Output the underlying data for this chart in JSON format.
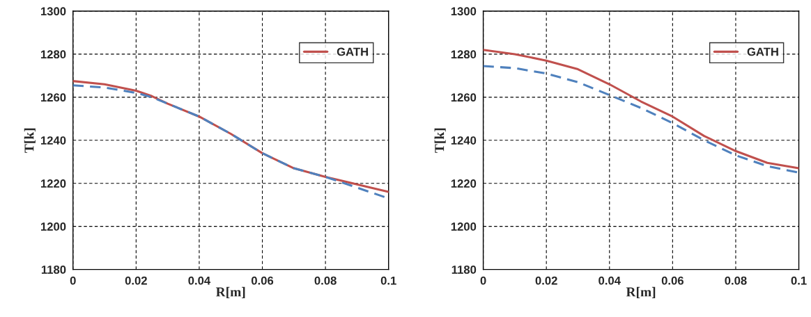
{
  "chart_data": [
    {
      "type": "line",
      "xlabel": "R[m]",
      "ylabel": "T[k]",
      "x": [
        0,
        0.01,
        0.02,
        0.025,
        0.03,
        0.04,
        0.05,
        0.06,
        0.07,
        0.08,
        0.09,
        0.1
      ],
      "xlim": [
        0,
        0.1
      ],
      "xticks": [
        0,
        0.02,
        0.04,
        0.06,
        0.08,
        0.1
      ],
      "ylim": [
        1180,
        1300
      ],
      "yticks": [
        1180,
        1200,
        1220,
        1240,
        1260,
        1280,
        1300
      ],
      "grid": true,
      "legend": "top right",
      "series": [
        {
          "color": "#4f81bd",
          "line_style": "dashed",
          "values": [
            1265.5,
            1264.5,
            1262,
            1260,
            1257,
            1251,
            1243,
            1234,
            1227,
            1223,
            1218,
            1213
          ]
        },
        {
          "name": "GATH",
          "color": "#c0504d",
          "line_style": "solid",
          "values": [
            1267.5,
            1266,
            1263,
            1260.5,
            1257,
            1251,
            1243,
            1234,
            1227,
            1223,
            1219.5,
            1216
          ]
        }
      ]
    },
    {
      "type": "line",
      "xlabel": "R[m]",
      "ylabel": "T[k]",
      "x": [
        0,
        0.01,
        0.02,
        0.03,
        0.04,
        0.05,
        0.06,
        0.07,
        0.08,
        0.09,
        0.1
      ],
      "xlim": [
        0,
        0.1
      ],
      "xticks": [
        0,
        0.02,
        0.04,
        0.06,
        0.08,
        0.1
      ],
      "ylim": [
        1180,
        1300
      ],
      "yticks": [
        1180,
        1200,
        1220,
        1240,
        1260,
        1280,
        1300
      ],
      "grid": true,
      "legend": "top right",
      "series": [
        {
          "color": "#4f81bd",
          "line_style": "dashed",
          "values": [
            1274.5,
            1273.5,
            1271,
            1267,
            1261,
            1255,
            1248,
            1240,
            1233,
            1228,
            1225
          ]
        },
        {
          "name": "GATH",
          "color": "#c0504d",
          "line_style": "solid",
          "values": [
            1282,
            1280,
            1277,
            1273,
            1266,
            1258,
            1251,
            1242,
            1235,
            1229.5,
            1227
          ]
        }
      ]
    }
  ]
}
